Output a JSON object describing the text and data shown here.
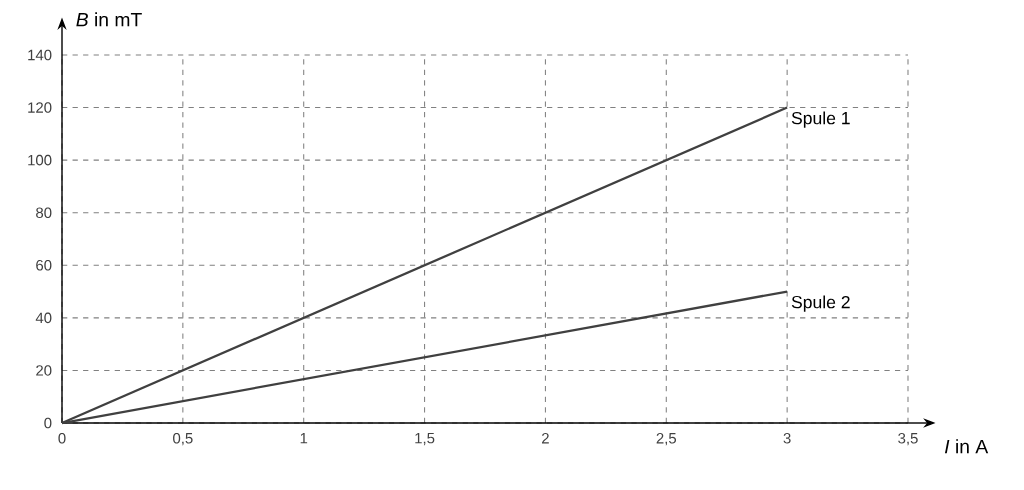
{
  "chart_data": {
    "type": "line",
    "xlabel": "*I* in A",
    "ylabel": "*B* in mT",
    "x": [
      0,
      3
    ],
    "series": [
      {
        "name": "Spule 1",
        "color": "#404040",
        "values": [
          0,
          120
        ]
      },
      {
        "name": "Spule 2",
        "color": "#404040",
        "values": [
          0,
          50
        ]
      }
    ],
    "xlim": [
      0,
      3.5
    ],
    "ylim": [
      0,
      140
    ],
    "xticks": [
      0,
      {
        "value": 0.5,
        "label": "0,5"
      },
      1,
      {
        "value": 1.5,
        "label": "1,5"
      },
      2,
      {
        "value": 2.5,
        "label": "2,5"
      },
      3,
      {
        "value": 3.5,
        "label": "3,5"
      }
    ],
    "yticks": [
      0,
      20,
      40,
      60,
      80,
      100,
      120,
      140
    ],
    "grid": true,
    "legend": false,
    "line_style": "solid"
  }
}
